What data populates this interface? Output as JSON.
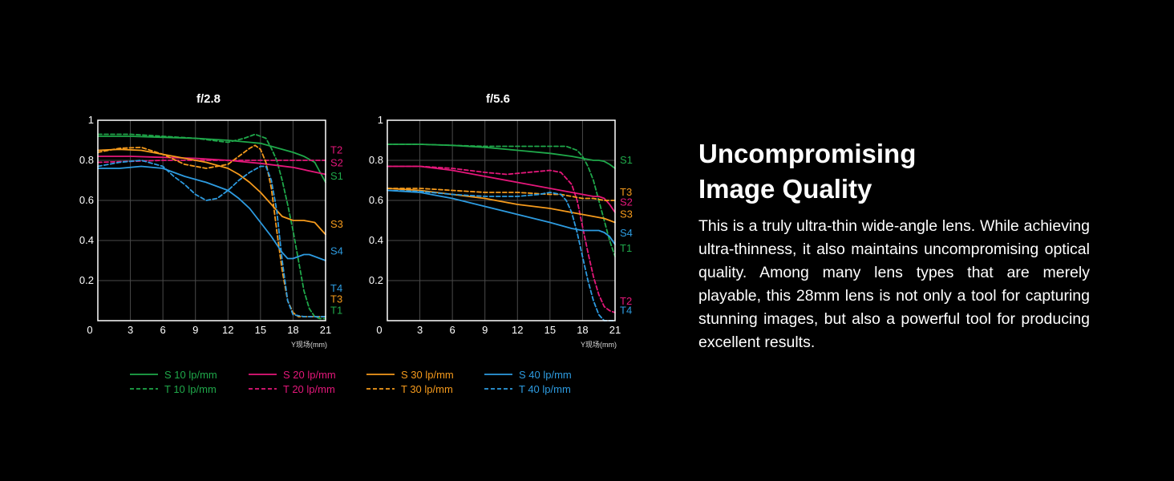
{
  "colors": {
    "s10": "#1fa84a",
    "s20": "#e4177a",
    "s30": "#f59a1c",
    "s40": "#2d9be0"
  },
  "chart_data": [
    {
      "type": "line",
      "title": "f/2.8",
      "xlabel": "Y现场(mm)",
      "ylabel": "",
      "xlim": [
        0,
        21
      ],
      "ylim": [
        0,
        1
      ],
      "xticks": [
        0,
        3,
        6,
        9,
        12,
        15,
        18,
        21
      ],
      "yticks": [
        "",
        "0.2",
        "0.4",
        "0.6",
        "0.8",
        "1"
      ],
      "series": [
        {
          "name": "S 10 lp/mm",
          "key": "s10",
          "dash": false,
          "x": [
            0,
            3,
            6,
            9,
            12,
            14,
            15,
            16,
            17,
            18,
            19,
            20,
            21
          ],
          "y": [
            0.92,
            0.92,
            0.915,
            0.91,
            0.9,
            0.89,
            0.885,
            0.87,
            0.855,
            0.84,
            0.82,
            0.79,
            0.69
          ]
        },
        {
          "name": "T 10 lp/mm",
          "key": "s10",
          "dash": true,
          "x": [
            0,
            3,
            6,
            9,
            12,
            13.5,
            14.5,
            15.5,
            16,
            16.5,
            17,
            17.5,
            18,
            18.5,
            19,
            19.5,
            20,
            20.5,
            21
          ],
          "y": [
            0.93,
            0.93,
            0.92,
            0.91,
            0.89,
            0.91,
            0.93,
            0.91,
            0.86,
            0.8,
            0.7,
            0.58,
            0.45,
            0.3,
            0.15,
            0.06,
            0.02,
            0.01,
            0.01
          ]
        },
        {
          "name": "S 20 lp/mm",
          "key": "s20",
          "dash": false,
          "x": [
            0,
            3,
            6,
            9,
            12,
            15,
            18,
            21
          ],
          "y": [
            0.82,
            0.82,
            0.815,
            0.81,
            0.8,
            0.785,
            0.765,
            0.73
          ]
        },
        {
          "name": "T 20 lp/mm",
          "key": "s20",
          "dash": true,
          "x": [
            0,
            3,
            6,
            9,
            12,
            15,
            18,
            21
          ],
          "y": [
            0.79,
            0.795,
            0.8,
            0.8,
            0.8,
            0.8,
            0.8,
            0.8
          ]
        },
        {
          "name": "S 30 lp/mm",
          "key": "s30",
          "dash": false,
          "x": [
            0,
            2,
            4,
            6,
            8,
            10,
            12,
            13,
            14,
            15,
            16,
            16.5,
            17,
            17.5,
            18,
            19,
            20,
            20.5,
            21
          ],
          "y": [
            0.85,
            0.855,
            0.85,
            0.83,
            0.81,
            0.79,
            0.76,
            0.73,
            0.69,
            0.64,
            0.58,
            0.55,
            0.52,
            0.51,
            0.5,
            0.5,
            0.49,
            0.46,
            0.43
          ]
        },
        {
          "name": "T 30 lp/mm",
          "key": "s30",
          "dash": true,
          "x": [
            0,
            2,
            4,
            6,
            8,
            10,
            12,
            13,
            14,
            14.5,
            15,
            15.5,
            16,
            16.5,
            17,
            17.5,
            18,
            18.5,
            19,
            20,
            21
          ],
          "y": [
            0.84,
            0.86,
            0.865,
            0.83,
            0.78,
            0.76,
            0.78,
            0.82,
            0.86,
            0.875,
            0.855,
            0.79,
            0.66,
            0.45,
            0.25,
            0.1,
            0.04,
            0.02,
            0.02,
            0.02,
            0.02
          ]
        },
        {
          "name": "S 40 lp/mm",
          "key": "s40",
          "dash": false,
          "x": [
            0,
            2,
            4,
            6,
            8,
            10,
            12,
            13,
            14,
            15,
            16,
            16.5,
            17,
            17.5,
            18,
            18.5,
            19,
            19.5,
            20,
            20.5,
            21
          ],
          "y": [
            0.76,
            0.76,
            0.77,
            0.76,
            0.72,
            0.69,
            0.65,
            0.61,
            0.56,
            0.49,
            0.42,
            0.38,
            0.34,
            0.31,
            0.31,
            0.32,
            0.33,
            0.33,
            0.32,
            0.31,
            0.3
          ]
        },
        {
          "name": "T 40 lp/mm",
          "key": "s40",
          "dash": true,
          "x": [
            0,
            1,
            2,
            4,
            6,
            7,
            8,
            9,
            10,
            11,
            12,
            13,
            14,
            15,
            15.5,
            16,
            16.5,
            17,
            17.5,
            18,
            19,
            20,
            21
          ],
          "y": [
            0.77,
            0.78,
            0.79,
            0.8,
            0.77,
            0.72,
            0.68,
            0.63,
            0.6,
            0.61,
            0.65,
            0.7,
            0.74,
            0.77,
            0.77,
            0.7,
            0.55,
            0.3,
            0.1,
            0.03,
            0.02,
            0.02,
            0.02
          ]
        }
      ],
      "end_labels": [
        {
          "text": "T2",
          "key": "s20",
          "y": 0.855
        },
        {
          "text": "S2",
          "key": "s20",
          "y": 0.79
        },
        {
          "text": "S1",
          "key": "s10",
          "y": 0.725
        },
        {
          "text": "S3",
          "key": "s30",
          "y": 0.485
        },
        {
          "text": "S4",
          "key": "s40",
          "y": 0.35
        },
        {
          "text": "T4",
          "key": "s40",
          "y": 0.165
        },
        {
          "text": "T3",
          "key": "s30",
          "y": 0.11
        },
        {
          "text": "T1",
          "key": "s10",
          "y": 0.055
        }
      ]
    },
    {
      "type": "line",
      "title": "f/5.6",
      "xlabel": "Y现场(mm)",
      "ylabel": "",
      "xlim": [
        0,
        21
      ],
      "ylim": [
        0,
        1
      ],
      "xticks": [
        0,
        3,
        6,
        9,
        12,
        15,
        18,
        21
      ],
      "yticks": [
        "",
        "0.2",
        "0.4",
        "0.6",
        "0.8",
        "1"
      ],
      "series": [
        {
          "name": "S 10 lp/mm",
          "key": "s10",
          "dash": false,
          "x": [
            0,
            3,
            6,
            9,
            12,
            15,
            17,
            18,
            19,
            19.5,
            20,
            20.5,
            21
          ],
          "y": [
            0.88,
            0.88,
            0.875,
            0.865,
            0.85,
            0.835,
            0.82,
            0.81,
            0.8,
            0.8,
            0.795,
            0.78,
            0.76
          ]
        },
        {
          "name": "T 10 lp/mm",
          "key": "s10",
          "dash": true,
          "x": [
            0,
            3,
            6,
            9,
            12,
            15,
            16.5,
            17.5,
            18,
            18.5,
            19,
            19.5,
            20,
            20.5,
            21
          ],
          "y": [
            0.88,
            0.88,
            0.875,
            0.87,
            0.87,
            0.87,
            0.87,
            0.85,
            0.82,
            0.77,
            0.7,
            0.6,
            0.5,
            0.4,
            0.32
          ]
        },
        {
          "name": "S 20 lp/mm",
          "key": "s20",
          "dash": false,
          "x": [
            0,
            3,
            6,
            9,
            12,
            15,
            17,
            18,
            19,
            19.5,
            20,
            20.5,
            21
          ],
          "y": [
            0.77,
            0.77,
            0.75,
            0.72,
            0.69,
            0.66,
            0.64,
            0.63,
            0.62,
            0.62,
            0.61,
            0.58,
            0.54
          ]
        },
        {
          "name": "T 20 lp/mm",
          "key": "s20",
          "dash": true,
          "x": [
            0,
            3,
            6,
            9,
            11,
            13,
            15,
            16,
            17,
            17.5,
            18,
            18.5,
            19,
            19.5,
            20,
            20.5,
            21
          ],
          "y": [
            0.77,
            0.77,
            0.76,
            0.74,
            0.73,
            0.74,
            0.75,
            0.74,
            0.68,
            0.6,
            0.47,
            0.34,
            0.22,
            0.13,
            0.07,
            0.05,
            0.04
          ]
        },
        {
          "name": "S 30 lp/mm",
          "key": "s30",
          "dash": false,
          "x": [
            0,
            3,
            6,
            9,
            12,
            15,
            17,
            18,
            19,
            20,
            21
          ],
          "y": [
            0.66,
            0.65,
            0.63,
            0.61,
            0.58,
            0.56,
            0.54,
            0.53,
            0.52,
            0.51,
            0.49
          ]
        },
        {
          "name": "T 30 lp/mm",
          "key": "s30",
          "dash": true,
          "x": [
            0,
            3,
            6,
            9,
            12,
            15,
            16,
            17,
            18,
            19,
            20,
            21
          ],
          "y": [
            0.66,
            0.66,
            0.65,
            0.64,
            0.64,
            0.63,
            0.63,
            0.62,
            0.61,
            0.61,
            0.6,
            0.6
          ]
        },
        {
          "name": "S 40 lp/mm",
          "key": "s40",
          "dash": false,
          "x": [
            0,
            3,
            6,
            9,
            12,
            15,
            17,
            18,
            18.5,
            19,
            19.5,
            20,
            20.5,
            21
          ],
          "y": [
            0.65,
            0.64,
            0.61,
            0.57,
            0.53,
            0.49,
            0.46,
            0.45,
            0.45,
            0.45,
            0.45,
            0.44,
            0.42,
            0.38
          ]
        },
        {
          "name": "T 40 lp/mm",
          "key": "s40",
          "dash": true,
          "x": [
            0,
            3,
            6,
            9,
            12,
            14,
            15,
            16,
            16.5,
            17,
            17.5,
            18,
            18.5,
            19,
            19.5,
            20,
            20.5,
            21
          ],
          "y": [
            0.65,
            0.645,
            0.63,
            0.62,
            0.62,
            0.63,
            0.64,
            0.63,
            0.6,
            0.54,
            0.44,
            0.32,
            0.2,
            0.1,
            0.03,
            0.0,
            0.0,
            0.0
          ]
        }
      ],
      "end_labels": [
        {
          "text": "S1",
          "key": "s10",
          "y": 0.805
        },
        {
          "text": "T3",
          "key": "s30",
          "y": 0.645
        },
        {
          "text": "S2",
          "key": "s20",
          "y": 0.595
        },
        {
          "text": "S3",
          "key": "s30",
          "y": 0.535
        },
        {
          "text": "S4",
          "key": "s40",
          "y": 0.44
        },
        {
          "text": "T1",
          "key": "s10",
          "y": 0.365
        },
        {
          "text": "T2",
          "key": "s20",
          "y": 0.1
        },
        {
          "text": "T4",
          "key": "s40",
          "y": 0.055
        }
      ]
    }
  ],
  "legend": [
    {
      "label": "S 10 lp/mm",
      "key": "s10",
      "dash": false
    },
    {
      "label": "S 20 lp/mm",
      "key": "s20",
      "dash": false
    },
    {
      "label": "S 30 lp/mm",
      "key": "s30",
      "dash": false
    },
    {
      "label": "S 40 lp/mm",
      "key": "s40",
      "dash": false
    },
    {
      "label": "T 10 lp/mm",
      "key": "s10",
      "dash": true
    },
    {
      "label": "T 20 lp/mm",
      "key": "s20",
      "dash": true
    },
    {
      "label": "T 30 lp/mm",
      "key": "s30",
      "dash": true
    },
    {
      "label": "T 40 lp/mm",
      "key": "s40",
      "dash": true
    }
  ],
  "text": {
    "heading_line1": "Uncompromising",
    "heading_line2": "Image Quality",
    "body": "This is a truly ultra-thin wide-angle lens. While achieving ultra-thinness, it also maintains uncompromising optical quality. Among many lens types that are merely playable, this 28mm lens is not only a tool for capturing stunning images, but also a powerful tool for producing excellent results."
  }
}
